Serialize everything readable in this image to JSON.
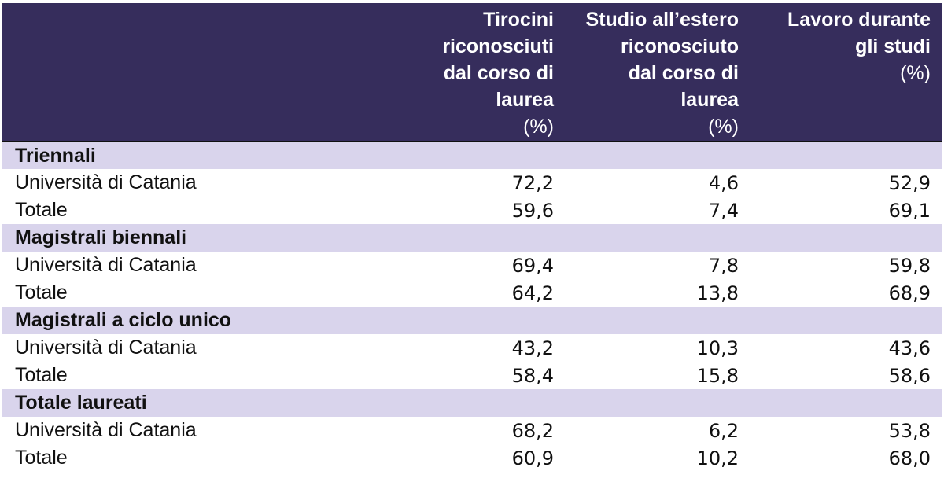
{
  "header": {
    "col1": {
      "lines": [
        "Tirocini",
        "riconosciuti",
        "dal corso di",
        "laurea"
      ],
      "unit": "(%)"
    },
    "col2": {
      "lines": [
        "Studio all’estero",
        "riconosciuto",
        "dal corso di",
        "laurea"
      ],
      "unit": "(%)"
    },
    "col3": {
      "lines": [
        "Lavoro durante",
        "gli studi"
      ],
      "unit": "(%)"
    }
  },
  "groups": [
    {
      "title": "Triennali",
      "rows": [
        {
          "label": "Università di Catania",
          "v1": "72,2",
          "v2": "4,6",
          "v3": "52,9"
        },
        {
          "label": "Totale",
          "v1": "59,6",
          "v2": "7,4",
          "v3": "69,1"
        }
      ]
    },
    {
      "title": "Magistrali biennali",
      "rows": [
        {
          "label": "Università di Catania",
          "v1": "69,4",
          "v2": "7,8",
          "v3": "59,8"
        },
        {
          "label": "Totale",
          "v1": "64,2",
          "v2": "13,8",
          "v3": "68,9"
        }
      ]
    },
    {
      "title": "Magistrali a ciclo unico",
      "rows": [
        {
          "label": "Università di Catania",
          "v1": "43,2",
          "v2": "10,3",
          "v3": "43,6"
        },
        {
          "label": "Totale",
          "v1": "58,4",
          "v2": "15,8",
          "v3": "58,6"
        }
      ]
    },
    {
      "title": "Totale laureati",
      "rows": [
        {
          "label": "Università di Catania",
          "v1": "68,2",
          "v2": "6,2",
          "v3": "53,8"
        },
        {
          "label": "Totale",
          "v1": "60,9",
          "v2": "10,2",
          "v3": "68,0"
        }
      ]
    }
  ]
}
